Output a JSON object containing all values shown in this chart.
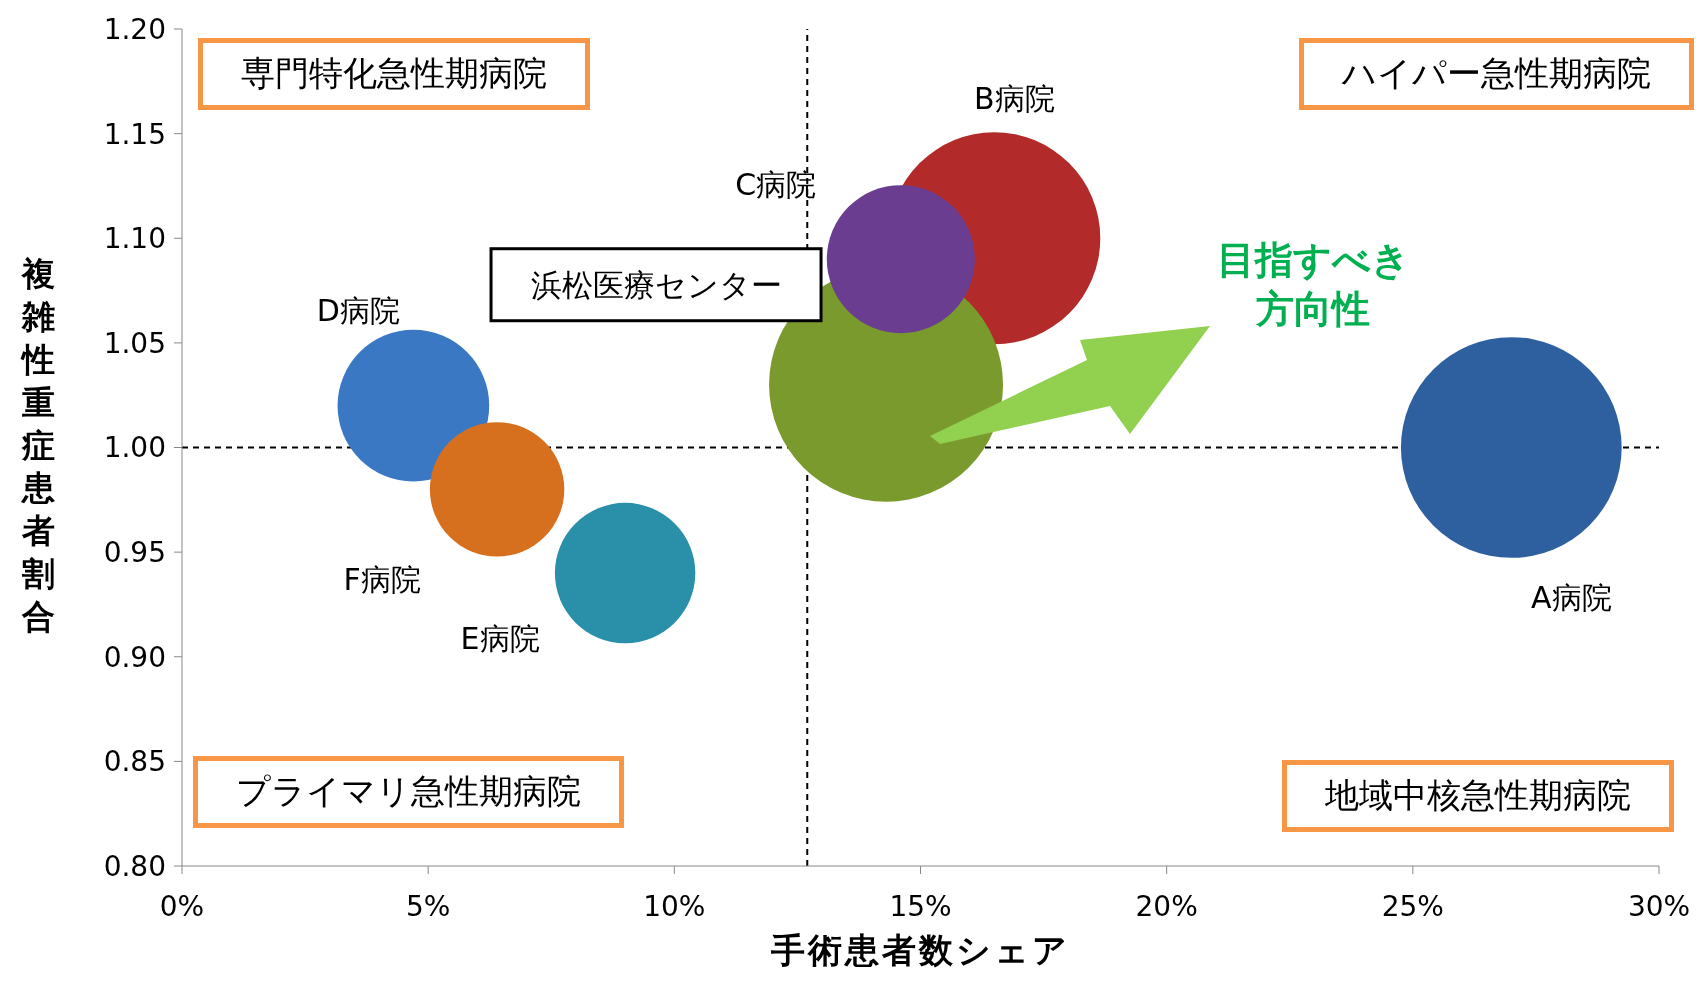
{
  "chart_data": {
    "type": "bubble",
    "xlabel": "手術患者数シェア",
    "ylabel": "複雑性重症患者割合",
    "xlim": [
      0,
      30
    ],
    "xticks": [
      {
        "value": 0,
        "label": "0%"
      },
      {
        "value": 5,
        "label": "5%"
      },
      {
        "value": 10,
        "label": "10%"
      },
      {
        "value": 15,
        "label": "15%"
      },
      {
        "value": 20,
        "label": "20%"
      },
      {
        "value": 25,
        "label": "25%"
      },
      {
        "value": 30,
        "label": "30%"
      }
    ],
    "ylim": [
      0.8,
      1.2
    ],
    "yticks": [
      {
        "value": 0.8,
        "label": "0.80"
      },
      {
        "value": 0.85,
        "label": "0.85"
      },
      {
        "value": 0.9,
        "label": "0.90"
      },
      {
        "value": 0.95,
        "label": "0.95"
      },
      {
        "value": 1.0,
        "label": "1.00"
      },
      {
        "value": 1.05,
        "label": "1.05"
      },
      {
        "value": 1.1,
        "label": "1.10"
      },
      {
        "value": 1.15,
        "label": "1.15"
      },
      {
        "value": 1.2,
        "label": "1.20"
      }
    ],
    "series": [
      {
        "name": "A病院",
        "color": "#2e5f9e",
        "x": [
          27.0
        ],
        "values": [
          1.0
        ],
        "sizes": [
          0.89
        ]
      },
      {
        "name": "B病院",
        "color": "#b22a2a",
        "x": [
          16.5
        ],
        "values": [
          1.1
        ],
        "sizes": [
          0.82
        ]
      },
      {
        "name": "浜松医療センター",
        "color": "#7a9a2e",
        "x": [
          14.3
        ],
        "values": [
          1.03
        ],
        "sizes": [
          1
        ]
      },
      {
        "name": "C病院",
        "color": "#6a3d91",
        "x": [
          14.6
        ],
        "values": [
          1.09
        ],
        "sizes": [
          0.4
        ]
      },
      {
        "name": "D病院",
        "color": "#3a78c4",
        "x": [
          4.7
        ],
        "values": [
          1.02
        ],
        "sizes": [
          0.42
        ]
      },
      {
        "name": "F病院",
        "color": "#d6701e",
        "x": [
          6.4
        ],
        "values": [
          0.98
        ],
        "sizes": [
          0.33
        ]
      },
      {
        "name": "E病院",
        "color": "#2a8fa8",
        "x": [
          9.0
        ],
        "values": [
          0.94
        ],
        "sizes": [
          0.36
        ]
      }
    ],
    "ref_lines": [
      {
        "axis": "x",
        "value": 12.7,
        "line_style": "dashed",
        "color": "#000000"
      },
      {
        "axis": "y",
        "value": 1.0,
        "line_style": "dashed",
        "color": "#000000"
      }
    ],
    "annotations": [
      "専門特化急性期病院",
      "ハイパー急性期病院",
      "プライマリ急性期病院",
      "地域中核急性期病院",
      "目指すべき方向性"
    ]
  }
}
